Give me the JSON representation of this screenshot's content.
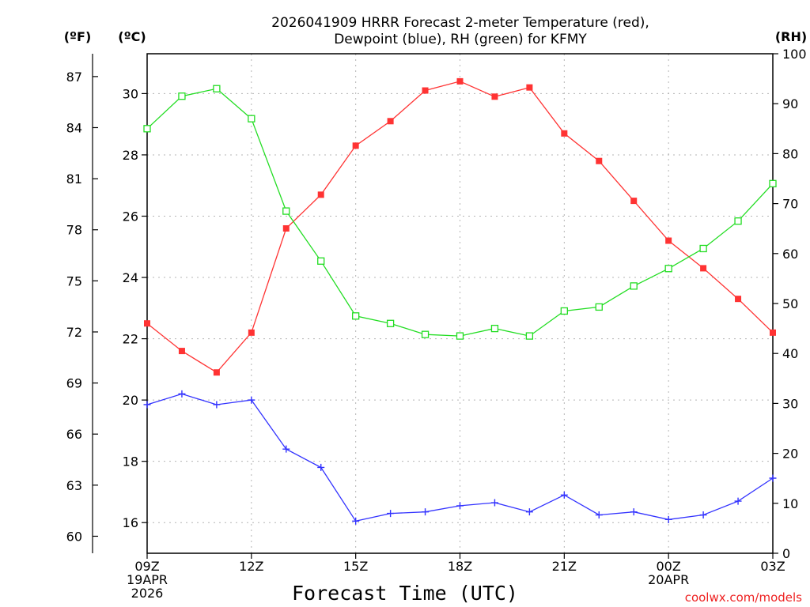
{
  "chart_data": {
    "type": "line",
    "title": "2026041909 HRRR Forecast 2-meter Temperature (red),",
    "subtitle": "Dewpoint (blue), RH (green) for KFMY",
    "xlabel": "Forecast Time (UTC)",
    "watermark": "coolwx.com/models",
    "x_hours": [
      0,
      1,
      2,
      3,
      4,
      5,
      6,
      7,
      8,
      9,
      10,
      11,
      12,
      13,
      14,
      15,
      16,
      17,
      18
    ],
    "x_ticks": [
      {
        "hour": 0,
        "lines": [
          "09Z",
          "19APR",
          "2026"
        ]
      },
      {
        "hour": 3,
        "lines": [
          "12Z"
        ]
      },
      {
        "hour": 6,
        "lines": [
          "15Z"
        ]
      },
      {
        "hour": 9,
        "lines": [
          "18Z"
        ]
      },
      {
        "hour": 12,
        "lines": [
          "21Z"
        ]
      },
      {
        "hour": 15,
        "lines": [
          "00Z",
          "20APR"
        ]
      },
      {
        "hour": 18,
        "lines": [
          "03Z"
        ]
      }
    ],
    "axes": {
      "celsius": {
        "label": "(ºC)",
        "ylim": [
          15.0,
          31.3
        ],
        "ticks": [
          16,
          18,
          20,
          22,
          24,
          26,
          28,
          30
        ]
      },
      "fahrenheit": {
        "label": "(ºF)",
        "ticks": [
          60,
          63,
          66,
          69,
          72,
          75,
          78,
          81,
          84,
          87
        ]
      },
      "rh": {
        "label": "(RH)",
        "ylim": [
          0,
          100
        ],
        "ticks": [
          0,
          10,
          20,
          30,
          40,
          50,
          60,
          70,
          80,
          90,
          100
        ]
      }
    },
    "grid": true,
    "series": [
      {
        "name": "Temperature",
        "axis": "celsius",
        "color": "#ff3333",
        "marker": "filled-square",
        "values": [
          22.5,
          21.6,
          20.9,
          22.2,
          25.6,
          26.7,
          28.3,
          29.1,
          30.1,
          30.4,
          29.9,
          30.2,
          28.7,
          27.8,
          26.5,
          25.2,
          24.3,
          23.3,
          22.2
        ]
      },
      {
        "name": "Dewpoint",
        "axis": "celsius",
        "color": "#3333ff",
        "marker": "plus",
        "values": [
          19.85,
          20.2,
          19.85,
          20.0,
          18.4,
          17.8,
          16.05,
          16.3,
          16.35,
          16.55,
          16.65,
          16.35,
          16.9,
          16.25,
          16.35,
          16.1,
          16.25,
          16.7,
          17.45
        ]
      },
      {
        "name": "RH",
        "axis": "rh",
        "color": "#22dd22",
        "marker": "open-square",
        "values": [
          85,
          91.5,
          93,
          87,
          68.5,
          58.5,
          47.5,
          46,
          43.8,
          43.5,
          45,
          43.5,
          48.5,
          49.3,
          53.5,
          57,
          61,
          66.5,
          74
        ]
      }
    ]
  }
}
